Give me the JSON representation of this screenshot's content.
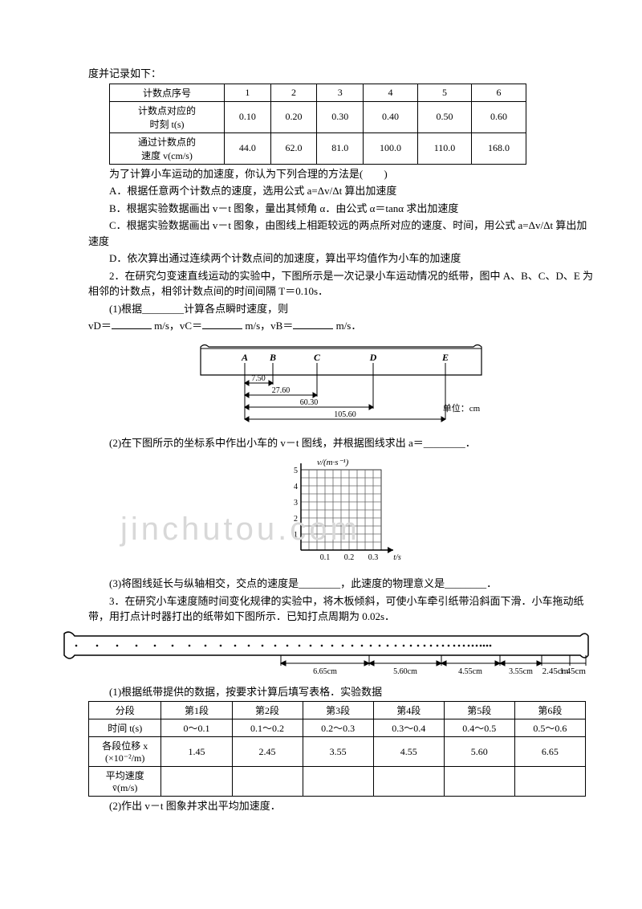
{
  "watermark": "jinchutou.com",
  "intro_line": "度并记录如下：",
  "table1": {
    "rows": [
      [
        "计数点序号",
        "1",
        "2",
        "3",
        "4",
        "5",
        "6"
      ],
      [
        "计数点对应的\n时刻 t(s)",
        "0.10",
        "0.20",
        "0.30",
        "0.40",
        "0.50",
        "0.60"
      ],
      [
        "通过计数点的\n速度 v(cm/s)",
        "44.0",
        "62.0",
        "81.0",
        "100.0",
        "110.0",
        "168.0"
      ]
    ]
  },
  "q1": {
    "stem": "为了计算小车运动的加速度，你认为下列合理的方法是(　　)",
    "A": "A．根据任意两个计数点的速度，选用公式 a=Δv/Δt 算出加速度",
    "B": "B．根据实验数据画出 v－t 图象，量出其倾角 α．由公式 α＝tanα 求出加速度",
    "C": "C．根据实验数据画出 v－t 图象，由图线上相距较远的两点所对应的速度、时间，用公式 a=Δv/Δt 算出加速度",
    "D": "D．依次算出通过连续两个计数点间的加速度，算出平均值作为小车的加速度"
  },
  "q2": {
    "stem": "2．在研究匀变速直线运动的实验中，下图所示是一次记录小车运动情况的纸带，图中 A、B、C、D、E 为相邻的计数点，相邻计数点间的时间间隔 T＝0.10s．",
    "sub1": "(1)根据________计算各点瞬时速度，则",
    "sub1b_prefix": "vD＝",
    "sub1b_mid1": "m/s，vC＝",
    "sub1b_mid2": "m/s，vB＝",
    "sub1b_end": "m/s．",
    "tape": {
      "labels": [
        "A",
        "B",
        "C",
        "D",
        "E"
      ],
      "dims": [
        "7.50",
        "27.60",
        "60.30",
        "105.60"
      ],
      "unit": "单位：cm"
    },
    "sub2": "(2)在下图所示的坐标系中作出小车的 v－t 图线，并根据图线求出 a＝________．",
    "grid": {
      "ylabel": "v/(m·s⁻¹)",
      "xlabel": "t/s",
      "yticks": [
        "1",
        "2",
        "3",
        "4",
        "5"
      ],
      "xticks": [
        "0.1",
        "0.2",
        "0.3"
      ]
    },
    "sub3": "(3)将图线延长与纵轴相交，交点的速度是________，此速度的物理意义是________．"
  },
  "q3": {
    "stem": "3．在研究小车速度随时间变化规律的实验中，将木板倾斜，可使小车牵引纸带沿斜面下滑．小车拖动纸带，用打点计时器打出的纸带如下图所示．已知打点周期为 0.02s．",
    "tape_dims": [
      "6.65cm",
      "5.60cm",
      "4.55cm",
      "3.55cm",
      "2.45cm",
      "1.45cm"
    ],
    "sub1": "(1)根据纸带提供的数据，按要求计算后填写表格．实验数据",
    "table": {
      "rows": [
        [
          "分段",
          "第1段",
          "第2段",
          "第3段",
          "第4段",
          "第5段",
          "第6段"
        ],
        [
          "时间 t(s)",
          "0～0.1",
          "0.1～0.2",
          "0.2～0.3",
          "0.3～0.4",
          "0.4～0.5",
          "0.5～0.6"
        ],
        [
          "各段位移 x\n(×10⁻²/m)",
          "1.45",
          "2.45",
          "3.55",
          "4.55",
          "5.60",
          "6.65"
        ],
        [
          "平均速度\nv̄(m/s)",
          "",
          "",
          "",
          "",
          "",
          ""
        ]
      ]
    },
    "sub2": "(2)作出 v－t 图象并求出平均加速度．"
  }
}
